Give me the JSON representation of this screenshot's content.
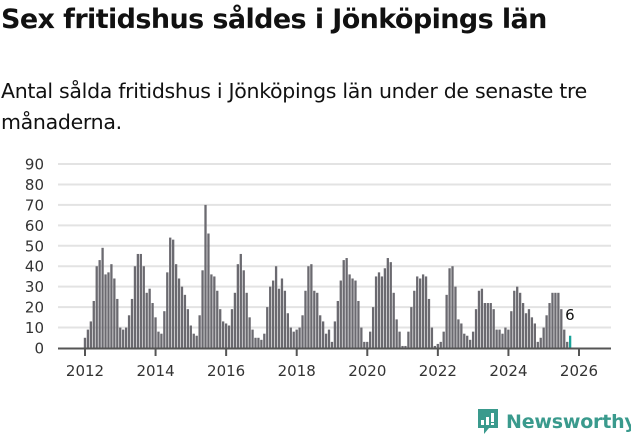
{
  "header": {
    "title": "Sex fritidshus såldes i Jönköpings län",
    "subtitle": "Antal sålda fritidshus i Jönköpings län under de senaste tre månaderna."
  },
  "branding": {
    "logo_text": "Newsworthy",
    "logo_color": "#3a9a8d"
  },
  "colors": {
    "bar": "#6b6a70",
    "highlight": "#1aa39a",
    "grid": "#e3e3e3",
    "axis": "#555555"
  },
  "chart_data": {
    "type": "bar",
    "title": "Sex fritidshus såldes i Jönköpings län",
    "subtitle": "Antal sålda fritidshus i Jönköpings län under de senaste tre månaderna.",
    "xlabel": "",
    "ylabel": "",
    "ylim": [
      0,
      90
    ],
    "yticks": [
      0,
      10,
      20,
      30,
      40,
      50,
      60,
      70,
      80,
      90
    ],
    "xticks": [
      "2012",
      "2014",
      "2016",
      "2018",
      "2020",
      "2022",
      "2024",
      "2026"
    ],
    "grid": true,
    "legend": null,
    "start": "2012-01",
    "frequency": "monthly",
    "annotation": {
      "label": "6",
      "month": "2026-01"
    },
    "values": [
      5,
      9,
      13,
      23,
      40,
      43,
      49,
      36,
      37,
      41,
      34,
      24,
      10,
      9,
      10,
      16,
      24,
      40,
      46,
      46,
      40,
      27,
      29,
      22,
      15,
      8,
      7,
      18,
      37,
      54,
      53,
      41,
      34,
      30,
      26,
      19,
      11,
      7,
      6,
      16,
      38,
      70,
      56,
      36,
      35,
      28,
      19,
      13,
      12,
      11,
      19,
      27,
      41,
      46,
      38,
      27,
      15,
      9,
      5,
      5,
      4,
      7,
      20,
      30,
      33,
      40,
      29,
      34,
      28,
      17,
      10,
      8,
      9,
      10,
      16,
      28,
      40,
      41,
      28,
      27,
      16,
      13,
      7,
      9,
      3,
      13,
      23,
      33,
      43,
      44,
      36,
      34,
      33,
      23,
      10,
      3,
      3,
      8,
      20,
      35,
      37,
      35,
      39,
      44,
      42,
      27,
      14,
      8,
      1,
      1,
      8,
      20,
      28,
      35,
      34,
      36,
      35,
      24,
      10,
      1,
      2,
      3,
      8,
      26,
      39,
      40,
      30,
      14,
      12,
      7,
      6,
      4,
      8,
      19,
      28,
      29,
      22,
      22,
      22,
      19,
      9,
      9,
      7,
      10,
      9,
      18,
      28,
      30,
      27,
      22,
      17,
      19,
      15,
      12,
      3,
      5,
      10,
      16,
      22,
      27,
      27,
      27,
      19,
      9,
      3,
      6
    ]
  }
}
